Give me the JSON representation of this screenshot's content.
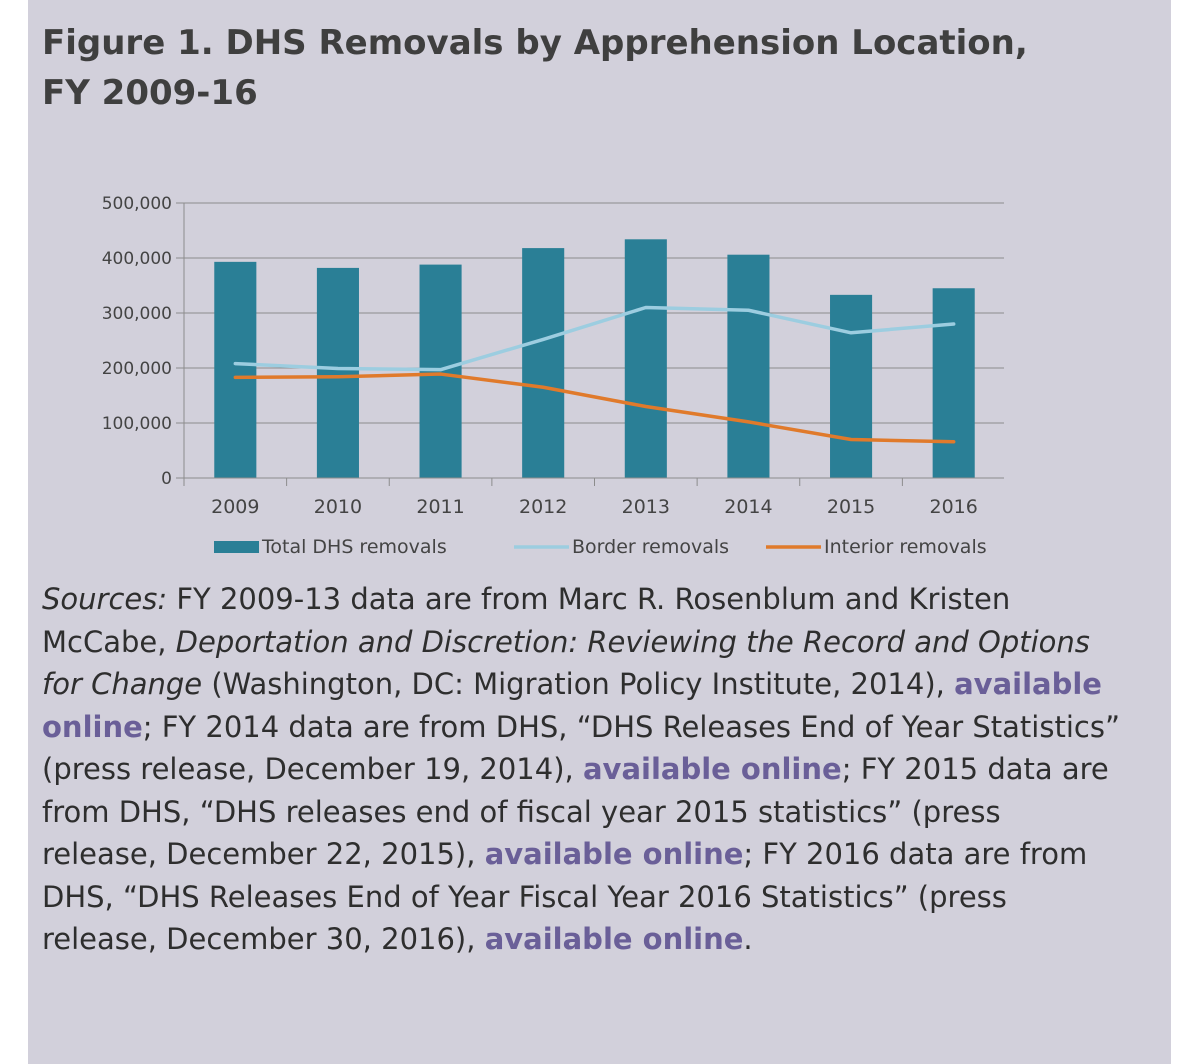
{
  "title": "Figure 1. DHS Removals by Apprehension Location, FY 2009-16",
  "chart_data": {
    "type": "bar",
    "categories": [
      "2009",
      "2010",
      "2011",
      "2012",
      "2013",
      "2014",
      "2015",
      "2016"
    ],
    "ylim": [
      0,
      500000
    ],
    "yticks": [
      0,
      100000,
      200000,
      300000,
      400000,
      500000
    ],
    "ytick_labels": [
      "0",
      "100,000",
      "200,000",
      "300,000",
      "400,000",
      "500,000"
    ],
    "grid": true,
    "legend_position": "bottom",
    "series": [
      {
        "name": "Total DHS removals",
        "kind": "bar",
        "color": "#2a7f96",
        "values": [
          393000,
          382000,
          388000,
          418000,
          434000,
          406000,
          333000,
          345000
        ]
      },
      {
        "name": "Border removals",
        "kind": "line",
        "color": "#9ccde0",
        "values": [
          208000,
          199000,
          197000,
          252000,
          310000,
          305000,
          264000,
          280000
        ]
      },
      {
        "name": "Interior removals",
        "kind": "line",
        "color": "#e07a2b",
        "values": [
          183000,
          184000,
          189000,
          165000,
          130000,
          102000,
          70000,
          66000
        ]
      }
    ]
  },
  "sources": {
    "label": "Sources:",
    "t1": " FY 2009-13 data are from Marc R. Rosenblum and Kristen McCabe, ",
    "book": "Deportation and Discretion: Reviewing the Record and Options for Change",
    "t2": " (Washington, DC: Migration Policy Institute, 2014), ",
    "link1": "available online",
    "t3": "; FY 2014 data are from DHS, “DHS Releases End of Year Statistics” (press release, December 19, 2014), ",
    "link2": "available online",
    "t4": "; FY 2015 data are from DHS, “DHS releases end of fiscal year 2015 statistics” (press release, December 22, 2015), ",
    "link3": "available online",
    "t5": "; FY 2016 data are from DHS, “DHS Releases End of Year Fiscal Year 2016 Statistics” (press release, December 30, 2016), ",
    "link4": "available online",
    "t6": "."
  }
}
